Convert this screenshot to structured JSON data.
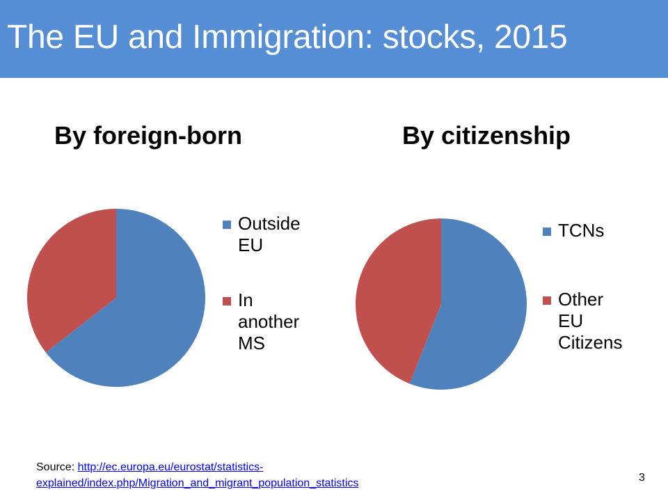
{
  "slide": {
    "title": "The EU and Immigration: stocks, 2015",
    "number": "3"
  },
  "source": {
    "label": "Source:",
    "link_line1": "http://ec.europa.eu/eurostat/statistics-",
    "link_line2": "explained/index.php/Migration_and_migrant_population_statistics"
  },
  "colors": {
    "header": "#558ed5",
    "series_blue": "#4f81bd",
    "series_red": "#c0504d"
  },
  "chart_data": [
    {
      "type": "pie",
      "title": "By foreign-born",
      "labels": [
        "Outside EU",
        "In another MS"
      ],
      "legend_lines": [
        [
          "Outside",
          "EU"
        ],
        [
          "In",
          "another",
          "MS"
        ]
      ],
      "values": [
        64.5,
        35.5
      ],
      "colors": [
        "#4f81bd",
        "#c0504d"
      ],
      "legend_position": "right"
    },
    {
      "type": "pie",
      "title": "By citizenship",
      "labels": [
        "TCNs",
        "Other EU Citizens"
      ],
      "legend_lines": [
        [
          "TCNs"
        ],
        [
          "Other",
          "EU",
          "Citizens"
        ]
      ],
      "values": [
        56,
        44
      ],
      "colors": [
        "#4f81bd",
        "#c0504d"
      ],
      "legend_position": "right"
    }
  ]
}
